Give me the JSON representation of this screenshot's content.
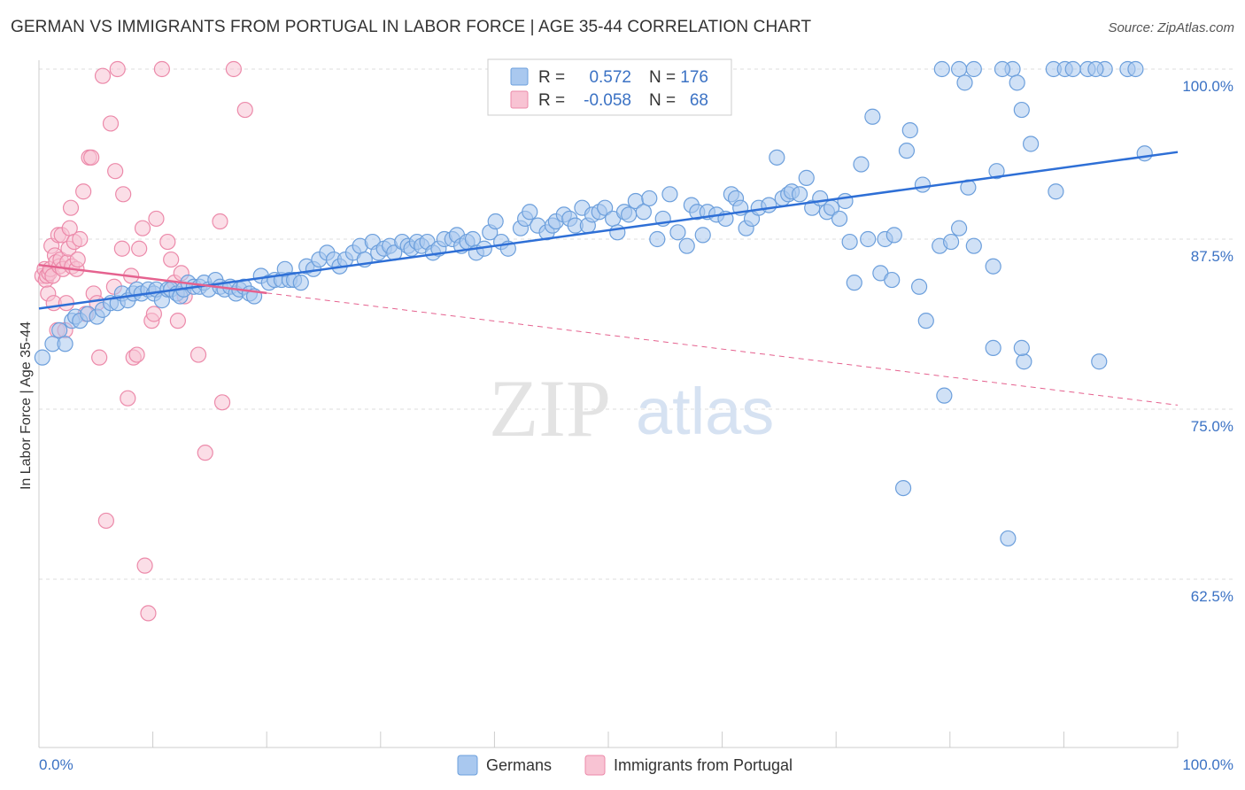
{
  "header": {
    "title": "GERMAN VS IMMIGRANTS FROM PORTUGAL IN LABOR FORCE | AGE 35-44 CORRELATION CHART",
    "source": "Source: ZipAtlas.com"
  },
  "watermark": {
    "zip": "ZIP",
    "atlas": "atlas"
  },
  "legend_box": {
    "rows": [
      {
        "r_label": "R =",
        "r_value": "0.572",
        "n_label": "N =",
        "n_value": "176"
      },
      {
        "r_label": "R =",
        "r_value": "-0.058",
        "n_label": "N =",
        "n_value": "68"
      }
    ]
  },
  "colors": {
    "germans_fill": "#a9c8ef",
    "germans_stroke": "#6c9fdc",
    "germans_line": "#2e6fd6",
    "portugal_fill": "#f8c3d3",
    "portugal_stroke": "#ec8aaa",
    "portugal_line": "#e5628f",
    "grid": "#dcdcdc",
    "tick_text": "#3b72c4"
  },
  "chart_data": {
    "type": "scatter",
    "title": "GERMAN VS IMMIGRANTS FROM PORTUGAL IN LABOR FORCE | AGE 35-44 CORRELATION CHART",
    "xlabel": "",
    "ylabel": "In Labor Force | Age 35-44",
    "xlim": [
      0,
      100
    ],
    "ylim": [
      50,
      101.5
    ],
    "x_tick_labels": [
      "0.0%",
      "100.0%"
    ],
    "y_ticks": [
      62.5,
      75.0,
      87.5,
      100.0
    ],
    "y_tick_labels": [
      "62.5%",
      "75.0%",
      "87.5%",
      "100.0%"
    ],
    "grid": true,
    "legend_position": "top-center",
    "series": [
      {
        "name": "Germans",
        "r": 0.572,
        "n": 176,
        "trend": {
          "x": [
            0,
            100
          ],
          "y": [
            82.4,
            93.9
          ],
          "style": "solid"
        },
        "points": [
          [
            0.3,
            78.8
          ],
          [
            1.2,
            79.8
          ],
          [
            1.8,
            80.8
          ],
          [
            2.3,
            79.8
          ],
          [
            2.9,
            81.5
          ],
          [
            3.2,
            81.8
          ],
          [
            3.6,
            81.5
          ],
          [
            4.3,
            82.0
          ],
          [
            5.1,
            81.8
          ],
          [
            5.6,
            82.3
          ],
          [
            6.3,
            82.8
          ],
          [
            6.9,
            82.8
          ],
          [
            7.3,
            83.5
          ],
          [
            7.8,
            83.0
          ],
          [
            8.3,
            83.5
          ],
          [
            8.6,
            83.8
          ],
          [
            9.0,
            83.5
          ],
          [
            9.6,
            83.8
          ],
          [
            10.1,
            83.5
          ],
          [
            10.3,
            83.8
          ],
          [
            10.8,
            83.0
          ],
          [
            11.3,
            83.8
          ],
          [
            11.6,
            83.8
          ],
          [
            12.1,
            83.5
          ],
          [
            12.4,
            83.3
          ],
          [
            12.7,
            83.8
          ],
          [
            13.1,
            84.3
          ],
          [
            13.6,
            84.0
          ],
          [
            14.1,
            84.0
          ],
          [
            14.5,
            84.3
          ],
          [
            14.9,
            83.8
          ],
          [
            15.5,
            84.5
          ],
          [
            15.9,
            84.0
          ],
          [
            16.3,
            83.8
          ],
          [
            16.8,
            84.0
          ],
          [
            17.3,
            83.5
          ],
          [
            17.6,
            83.8
          ],
          [
            18.0,
            84.0
          ],
          [
            18.5,
            83.5
          ],
          [
            18.9,
            83.3
          ],
          [
            19.5,
            84.8
          ],
          [
            20.2,
            84.3
          ],
          [
            20.7,
            84.5
          ],
          [
            21.3,
            84.5
          ],
          [
            21.6,
            85.3
          ],
          [
            22.0,
            84.5
          ],
          [
            22.4,
            84.5
          ],
          [
            23.0,
            84.3
          ],
          [
            23.5,
            85.5
          ],
          [
            24.1,
            85.3
          ],
          [
            24.6,
            86.0
          ],
          [
            25.3,
            86.5
          ],
          [
            25.9,
            86.0
          ],
          [
            26.4,
            85.5
          ],
          [
            26.9,
            86.0
          ],
          [
            27.6,
            86.5
          ],
          [
            28.2,
            87.0
          ],
          [
            28.6,
            86.0
          ],
          [
            29.3,
            87.3
          ],
          [
            29.8,
            86.5
          ],
          [
            30.3,
            86.8
          ],
          [
            30.8,
            87.0
          ],
          [
            31.2,
            86.5
          ],
          [
            31.9,
            87.3
          ],
          [
            32.4,
            87.0
          ],
          [
            32.7,
            86.8
          ],
          [
            33.2,
            87.3
          ],
          [
            33.6,
            87.0
          ],
          [
            34.1,
            87.3
          ],
          [
            34.6,
            86.5
          ],
          [
            35.1,
            86.8
          ],
          [
            35.6,
            87.5
          ],
          [
            36.3,
            87.5
          ],
          [
            36.7,
            87.8
          ],
          [
            37.1,
            87.0
          ],
          [
            37.6,
            87.3
          ],
          [
            38.1,
            87.5
          ],
          [
            38.4,
            86.5
          ],
          [
            39.1,
            86.8
          ],
          [
            39.6,
            88.0
          ],
          [
            40.1,
            88.8
          ],
          [
            40.6,
            87.3
          ],
          [
            41.2,
            86.8
          ],
          [
            42.3,
            88.3
          ],
          [
            42.7,
            89.0
          ],
          [
            43.1,
            89.5
          ],
          [
            43.8,
            88.5
          ],
          [
            44.6,
            88.0
          ],
          [
            45.1,
            88.5
          ],
          [
            45.4,
            88.8
          ],
          [
            46.1,
            89.3
          ],
          [
            46.6,
            89.0
          ],
          [
            47.1,
            88.5
          ],
          [
            47.7,
            89.8
          ],
          [
            48.2,
            88.5
          ],
          [
            48.6,
            89.3
          ],
          [
            49.2,
            89.5
          ],
          [
            49.7,
            89.8
          ],
          [
            50.4,
            89.0
          ],
          [
            50.8,
            88.0
          ],
          [
            51.4,
            89.5
          ],
          [
            51.8,
            89.3
          ],
          [
            52.4,
            90.3
          ],
          [
            53.1,
            89.5
          ],
          [
            53.6,
            90.5
          ],
          [
            54.3,
            87.5
          ],
          [
            54.8,
            89.0
          ],
          [
            55.4,
            90.8
          ],
          [
            56.1,
            88.0
          ],
          [
            56.9,
            87.0
          ],
          [
            57.3,
            90.0
          ],
          [
            57.8,
            89.5
          ],
          [
            58.3,
            87.8
          ],
          [
            58.7,
            89.5
          ],
          [
            59.5,
            89.3
          ],
          [
            60.3,
            89.0
          ],
          [
            60.8,
            90.8
          ],
          [
            61.2,
            90.5
          ],
          [
            61.6,
            89.8
          ],
          [
            62.1,
            88.3
          ],
          [
            62.6,
            89.0
          ],
          [
            63.2,
            89.8
          ],
          [
            64.1,
            90.0
          ],
          [
            64.8,
            93.5
          ],
          [
            65.3,
            90.5
          ],
          [
            65.8,
            90.8
          ],
          [
            66.1,
            91.0
          ],
          [
            66.8,
            90.8
          ],
          [
            67.4,
            92.0
          ],
          [
            67.9,
            89.8
          ],
          [
            68.6,
            90.5
          ],
          [
            69.2,
            89.5
          ],
          [
            69.6,
            89.8
          ],
          [
            70.3,
            89.0
          ],
          [
            70.8,
            90.3
          ],
          [
            71.2,
            87.3
          ],
          [
            71.6,
            84.3
          ],
          [
            72.2,
            93.0
          ],
          [
            72.8,
            87.5
          ],
          [
            73.2,
            96.5
          ],
          [
            73.9,
            85.0
          ],
          [
            74.3,
            87.5
          ],
          [
            74.9,
            84.5
          ],
          [
            75.1,
            87.8
          ],
          [
            76.2,
            94.0
          ],
          [
            76.5,
            95.5
          ],
          [
            77.3,
            84.0
          ],
          [
            77.6,
            91.5
          ],
          [
            77.9,
            81.5
          ],
          [
            79.1,
            87.0
          ],
          [
            79.5,
            76.0
          ],
          [
            80.1,
            87.3
          ],
          [
            80.8,
            88.3
          ],
          [
            81.6,
            91.3
          ],
          [
            82.1,
            87.0
          ],
          [
            84.1,
            92.5
          ],
          [
            85.1,
            65.5
          ],
          [
            85.5,
            100.0
          ],
          [
            75.9,
            69.2
          ],
          [
            93.1,
            78.5
          ],
          [
            97.1,
            93.8
          ],
          [
            79.3,
            100.0
          ],
          [
            80.8,
            100.0
          ],
          [
            81.3,
            99.0
          ],
          [
            82.1,
            100.0
          ],
          [
            83.8,
            79.5
          ],
          [
            84.6,
            100.0
          ],
          [
            85.9,
            99.0
          ],
          [
            86.3,
            97.0
          ],
          [
            87.1,
            94.5
          ],
          [
            89.1,
            100.0
          ],
          [
            89.3,
            91.0
          ],
          [
            90.1,
            100.0
          ],
          [
            90.8,
            100.0
          ],
          [
            93.6,
            100.0
          ],
          [
            95.6,
            100.0
          ],
          [
            96.3,
            100.0
          ],
          [
            86.5,
            78.5
          ],
          [
            86.3,
            79.5
          ],
          [
            92.1,
            100.0
          ],
          [
            92.8,
            100.0
          ],
          [
            83.8,
            85.5
          ]
        ]
      },
      {
        "name": "Immigrants from Portugal",
        "r": -0.058,
        "n": 68,
        "trend": {
          "x": [
            0,
            100
          ],
          "y": [
            85.6,
            75.3
          ],
          "style": "solid to x=20, dashed beyond"
        },
        "points": [
          [
            0.3,
            84.8
          ],
          [
            0.5,
            85.3
          ],
          [
            0.6,
            84.5
          ],
          [
            0.7,
            84.8
          ],
          [
            0.8,
            83.5
          ],
          [
            0.9,
            85.0
          ],
          [
            1.0,
            85.3
          ],
          [
            1.1,
            87.0
          ],
          [
            1.2,
            84.8
          ],
          [
            1.3,
            82.8
          ],
          [
            1.4,
            86.3
          ],
          [
            1.5,
            85.8
          ],
          [
            1.6,
            80.8
          ],
          [
            1.7,
            87.8
          ],
          [
            1.8,
            85.5
          ],
          [
            1.9,
            86.0
          ],
          [
            2.0,
            87.8
          ],
          [
            2.1,
            85.3
          ],
          [
            2.3,
            80.8
          ],
          [
            2.4,
            82.8
          ],
          [
            2.5,
            85.8
          ],
          [
            2.6,
            86.8
          ],
          [
            2.7,
            88.3
          ],
          [
            2.8,
            89.8
          ],
          [
            2.9,
            85.5
          ],
          [
            3.1,
            87.3
          ],
          [
            3.3,
            85.3
          ],
          [
            3.4,
            86.0
          ],
          [
            3.6,
            87.5
          ],
          [
            3.9,
            91.0
          ],
          [
            4.1,
            82.0
          ],
          [
            4.4,
            93.5
          ],
          [
            4.6,
            93.5
          ],
          [
            4.8,
            83.5
          ],
          [
            5.1,
            82.8
          ],
          [
            5.3,
            78.8
          ],
          [
            5.6,
            99.5
          ],
          [
            5.9,
            66.8
          ],
          [
            6.3,
            96.0
          ],
          [
            6.6,
            84.0
          ],
          [
            6.7,
            92.5
          ],
          [
            6.9,
            100.0
          ],
          [
            7.3,
            86.8
          ],
          [
            7.4,
            90.8
          ],
          [
            7.8,
            75.8
          ],
          [
            8.1,
            84.8
          ],
          [
            8.3,
            78.8
          ],
          [
            8.6,
            79.0
          ],
          [
            8.8,
            86.8
          ],
          [
            9.1,
            88.3
          ],
          [
            9.3,
            63.5
          ],
          [
            9.6,
            60.0
          ],
          [
            9.9,
            81.5
          ],
          [
            10.1,
            82.0
          ],
          [
            10.3,
            89.0
          ],
          [
            10.8,
            100.0
          ],
          [
            11.3,
            87.3
          ],
          [
            11.6,
            86.0
          ],
          [
            11.9,
            84.3
          ],
          [
            12.2,
            81.5
          ],
          [
            12.5,
            85.0
          ],
          [
            12.8,
            83.3
          ],
          [
            14.0,
            79.0
          ],
          [
            14.6,
            71.8
          ],
          [
            15.9,
            88.8
          ],
          [
            16.1,
            75.5
          ],
          [
            17.1,
            100.0
          ],
          [
            18.1,
            97.0
          ]
        ]
      }
    ]
  },
  "bottom_legend": [
    {
      "label": "Germans"
    },
    {
      "label": "Immigrants from Portugal"
    }
  ]
}
